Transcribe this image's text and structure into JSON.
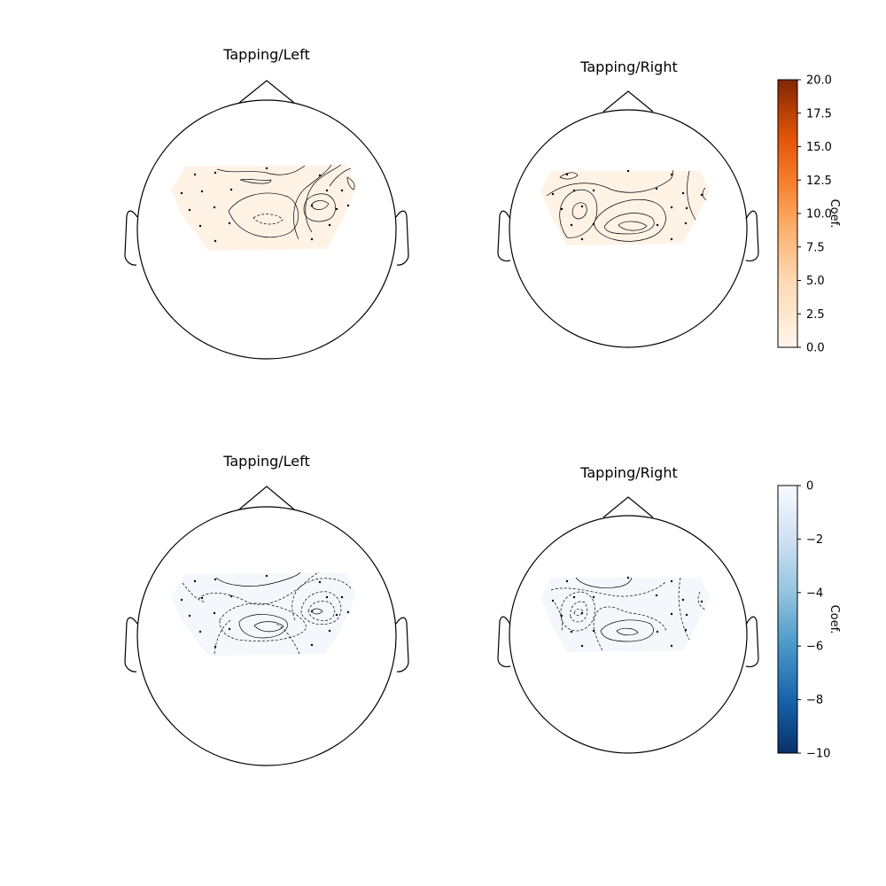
{
  "chart_data": [
    {
      "type": "heatmap",
      "title": "Tapping/Left",
      "colormap": "Oranges",
      "colorbar": {
        "label": "Coef.",
        "vmin": 0,
        "vmax": 20,
        "ticks": [
          "0.0",
          "2.5",
          "5.0",
          "7.5",
          "10.0",
          "12.5",
          "15.0",
          "17.5",
          "20.0"
        ]
      },
      "sensor_count": 19
    },
    {
      "type": "heatmap",
      "title": "Tapping/Right",
      "colormap": "Oranges",
      "colorbar": {
        "label": "Coef.",
        "vmin": 0,
        "vmax": 20,
        "ticks": [
          "0.0",
          "2.5",
          "5.0",
          "7.5",
          "10.0",
          "12.5",
          "15.0",
          "17.5",
          "20.0"
        ]
      },
      "sensor_count": 19
    },
    {
      "type": "heatmap",
      "title": "Tapping/Left",
      "colormap": "Blues_r",
      "colorbar": {
        "label": "Coef.",
        "vmin": -10,
        "vmax": 0,
        "ticks": [
          "−10",
          "−8",
          "−6",
          "−4",
          "−2",
          "0"
        ]
      },
      "sensor_count": 19
    },
    {
      "type": "heatmap",
      "title": "Tapping/Right",
      "colormap": "Blues_r",
      "colorbar": {
        "label": "Coef.",
        "vmin": -10,
        "vmax": 0,
        "ticks": [
          "−10",
          "−8",
          "−6",
          "−4",
          "−2",
          "0"
        ]
      },
      "sensor_count": 19
    }
  ],
  "colors": {
    "orange_low": "#fff5eb",
    "orange_high": "#7f2704",
    "blue_low": "#08306b",
    "blue_high": "#f7fbff"
  }
}
